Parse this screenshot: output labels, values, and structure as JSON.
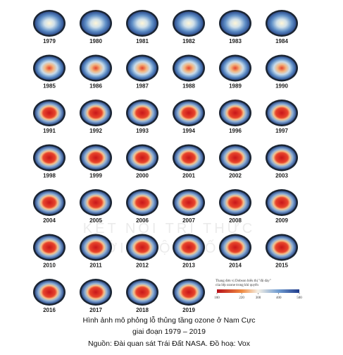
{
  "figure": {
    "years": [
      "1979",
      "1980",
      "1981",
      "1982",
      "1983",
      "1984",
      "1985",
      "1986",
      "1987",
      "1988",
      "1989",
      "1990",
      "1991",
      "1992",
      "1993",
      "1994",
      "1996",
      "1997",
      "1998",
      "1999",
      "2000",
      "2001",
      "2002",
      "2003",
      "2004",
      "2005",
      "2006",
      "2007",
      "2008",
      "2009",
      "2010",
      "2011",
      "2012",
      "2013",
      "2014",
      "2015",
      "2016",
      "2017",
      "2018",
      "2019"
    ],
    "watermark": [
      "KẾT NỐI TRI THỨC",
      "VỚI CUỘC SỐNG"
    ],
    "legend": {
      "title_lines": [
        "Thang đơn vị Dobson biểu thị \"độ dày\"",
        "của lớp ozone trong khí quyển"
      ],
      "range": [
        100,
        500
      ],
      "ticks": [
        100,
        220,
        300,
        400,
        500
      ]
    },
    "caption": [
      "Hình ảnh mô phỏng lỗ thủng tầng ozone ở Nam Cực",
      "giai đoạn 1979 – 2019",
      "Nguồn: Đài quan sát Trái Đất NASA. Đồ hoạ: Vox"
    ]
  }
}
